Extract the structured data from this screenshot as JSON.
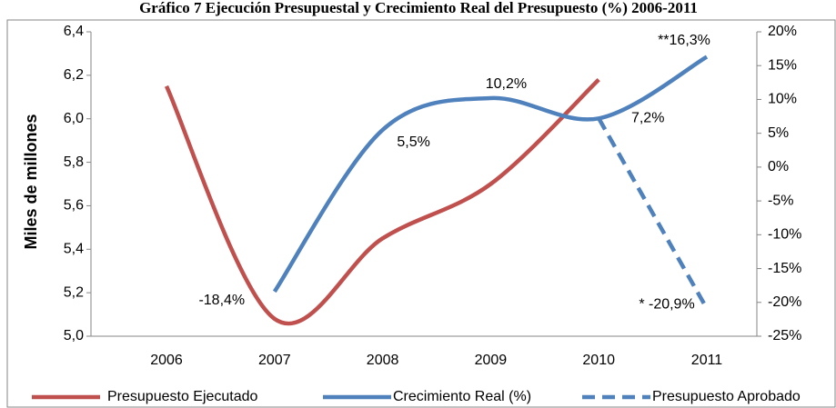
{
  "chart_data": {
    "type": "line",
    "title": "Gráfico 7 Ejecución Presupuestal y Crecimiento Real del Presupuesto (%) 2006-2011",
    "y_label": "Miles de millones",
    "categories": [
      "2006",
      "2007",
      "2008",
      "2009",
      "2010",
      "2011"
    ],
    "series": [
      {
        "name": "Presupuesto Ejecutado",
        "color": "#c0504d",
        "axis": "y",
        "dashed": false,
        "values": [
          6.15,
          5.08,
          5.45,
          5.7,
          6.18,
          null
        ]
      },
      {
        "name": "Crecimiento Real (%)",
        "color": "#4f81bd",
        "axis": "y2",
        "dashed": false,
        "values": [
          null,
          -18.4,
          5.5,
          10.2,
          7.2,
          16.3
        ],
        "value_labels": [
          null,
          "-18,4%",
          "5,5%",
          "10,2%",
          "7,2%",
          "**16,3%"
        ]
      },
      {
        "name": "Presupuesto Aprobado",
        "color": "#4f81bd",
        "axis": "y2",
        "dashed": true,
        "values": [
          null,
          null,
          null,
          null,
          7.2,
          -20.9
        ],
        "value_labels": [
          null,
          null,
          null,
          null,
          null,
          "* -20,9%"
        ]
      }
    ],
    "ylim": [
      5.0,
      6.4
    ],
    "yticks": [
      {
        "value": 5.0,
        "label": "5,0"
      },
      {
        "value": 5.2,
        "label": "5,2"
      },
      {
        "value": 5.4,
        "label": "5,4"
      },
      {
        "value": 5.6,
        "label": "5,6"
      },
      {
        "value": 5.8,
        "label": "5,8"
      },
      {
        "value": 6.0,
        "label": "6,0"
      },
      {
        "value": 6.2,
        "label": "6,2"
      },
      {
        "value": 6.4,
        "label": "6,4"
      }
    ],
    "y2lim": [
      -25,
      20
    ],
    "y2ticks": [
      {
        "value": -25,
        "label": "-25%"
      },
      {
        "value": -20,
        "label": "-20%"
      },
      {
        "value": -15,
        "label": "-15%"
      },
      {
        "value": -10,
        "label": "-10%"
      },
      {
        "value": -5,
        "label": "-5%"
      },
      {
        "value": 0,
        "label": "0%"
      },
      {
        "value": 5,
        "label": "5%"
      },
      {
        "value": 10,
        "label": "10%"
      },
      {
        "value": 15,
        "label": "15%"
      },
      {
        "value": 20,
        "label": "20%"
      }
    ],
    "grid": false
  }
}
